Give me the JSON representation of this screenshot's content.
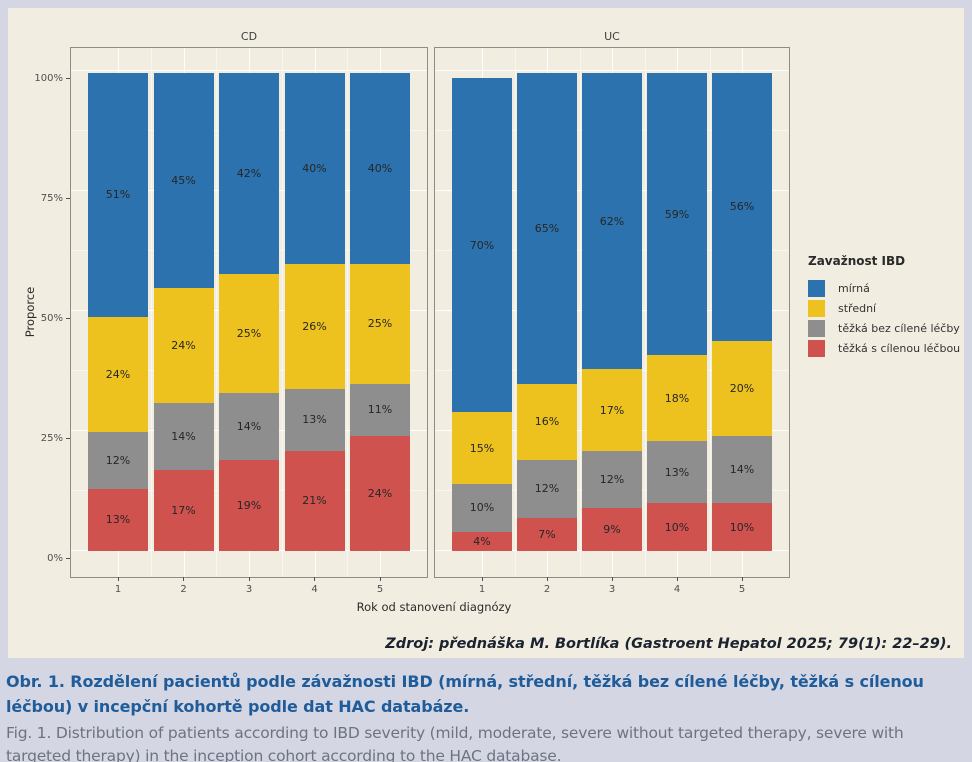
{
  "colors": {
    "mild_blue": "#2c72ae",
    "moderate_yellow": "#eec21e",
    "severe_no_target_gray": "#8e8e8e",
    "severe_target_red": "#d0524f",
    "figure_background": "#f1ede0",
    "page_background": "#d4d7e3",
    "panel_border": "#8d8d85",
    "caption_blue": "#1f5c99",
    "caption_gray": "#6d7382"
  },
  "chart": {
    "y_axis_label": "Proporce",
    "x_axis_label": "Rok od stanovení diagnózy",
    "y_ticks": [
      "0%",
      "25%",
      "50%",
      "75%",
      "100%"
    ],
    "source_note": "Zdroj: přednáška M. Bortlíka (Gastroent Hepatol 2025; 79(1): 22–29).",
    "legend": {
      "title": "Zavažnost IBD",
      "items": [
        {
          "label": "mírná",
          "color": "#2c72ae"
        },
        {
          "label": "střední",
          "color": "#eec21e"
        },
        {
          "label": "těžká bez cílené léčby",
          "color": "#8e8e8e"
        },
        {
          "label": "těžká s cílenou léčbou",
          "color": "#d0524f"
        }
      ]
    }
  },
  "chart_data": {
    "type": "bar",
    "stacked": true,
    "unit": "%",
    "title": "",
    "xlabel": "Rok od stanovení diagnózy",
    "ylabel": "Proporce",
    "ylim": [
      0,
      100
    ],
    "grid": true,
    "legend_position": "right",
    "categories": [
      "1",
      "2",
      "3",
      "4",
      "5"
    ],
    "facets": [
      {
        "title": "CD",
        "series": [
          {
            "name": "mírná",
            "color": "#2c72ae",
            "values": [
              51,
              45,
              42,
              40,
              40
            ]
          },
          {
            "name": "střední",
            "color": "#eec21e",
            "values": [
              24,
              24,
              25,
              26,
              25
            ]
          },
          {
            "name": "těžká bez cílené léčby",
            "color": "#8e8e8e",
            "values": [
              12,
              14,
              14,
              13,
              11
            ]
          },
          {
            "name": "těžká s cílenou léčbou",
            "color": "#d0524f",
            "values": [
              13,
              17,
              19,
              21,
              24
            ]
          }
        ]
      },
      {
        "title": "UC",
        "series": [
          {
            "name": "mírná",
            "color": "#2c72ae",
            "values": [
              70,
              65,
              62,
              59,
              56
            ]
          },
          {
            "name": "střední",
            "color": "#eec21e",
            "values": [
              15,
              16,
              17,
              18,
              20
            ]
          },
          {
            "name": "těžká bez cílené léčby",
            "color": "#8e8e8e",
            "values": [
              10,
              12,
              12,
              13,
              14
            ]
          },
          {
            "name": "těžká s cílenou léčbou",
            "color": "#d0524f",
            "values": [
              4,
              7,
              9,
              10,
              10
            ]
          }
        ]
      }
    ]
  },
  "caption": {
    "title_cs": "Obr. 1. Rozdělení pacientů podle závažnosti IBD (mírná, střední, těžká bez cílené léčby, těžká s cílenou léčbou) v incepční kohortě podle dat HAC databáze.",
    "title_en": "Fig. 1. Distribution of patients according to IBD severity (mild, moderate, severe without targeted therapy, severe with targeted therapy) in the inception cohort according to the HAC database."
  }
}
